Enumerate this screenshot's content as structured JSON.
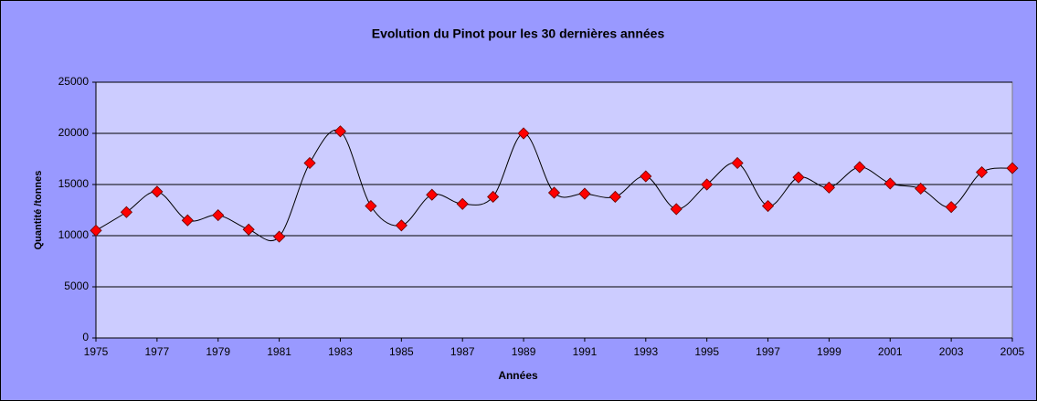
{
  "chart_data": {
    "type": "line",
    "title": "Evolution du Pinot pour les 30 dernières années",
    "x_label": "Années",
    "y_label": "Quantité /tonnes",
    "x": [
      1975,
      1976,
      1977,
      1978,
      1979,
      1980,
      1981,
      1982,
      1983,
      1984,
      1985,
      1986,
      1987,
      1988,
      1989,
      1990,
      1991,
      1992,
      1993,
      1994,
      1995,
      1996,
      1997,
      1998,
      1999,
      2000,
      2001,
      2002,
      2003,
      2004,
      2005
    ],
    "series": [
      {
        "name": "Pinot",
        "color": "#000000",
        "marker_color": "#ff0000",
        "values": [
          10500,
          12300,
          14300,
          11500,
          12000,
          10600,
          9900,
          17100,
          20200,
          12900,
          11000,
          14000,
          13100,
          13800,
          20000,
          14200,
          14100,
          13800,
          15800,
          12600,
          15000,
          17100,
          12900,
          15700,
          14700,
          16700,
          15100,
          14600,
          12800,
          16200,
          16600
        ]
      }
    ],
    "xlim": [
      1975,
      2005
    ],
    "xticks": [
      1975,
      1977,
      1979,
      1981,
      1983,
      1985,
      1987,
      1989,
      1991,
      1993,
      1995,
      1997,
      1999,
      2001,
      2003,
      2005
    ],
    "ylim": [
      0,
      25000
    ],
    "yticks": [
      0,
      5000,
      10000,
      15000,
      20000,
      25000
    ],
    "grid": true,
    "smooth": true
  }
}
